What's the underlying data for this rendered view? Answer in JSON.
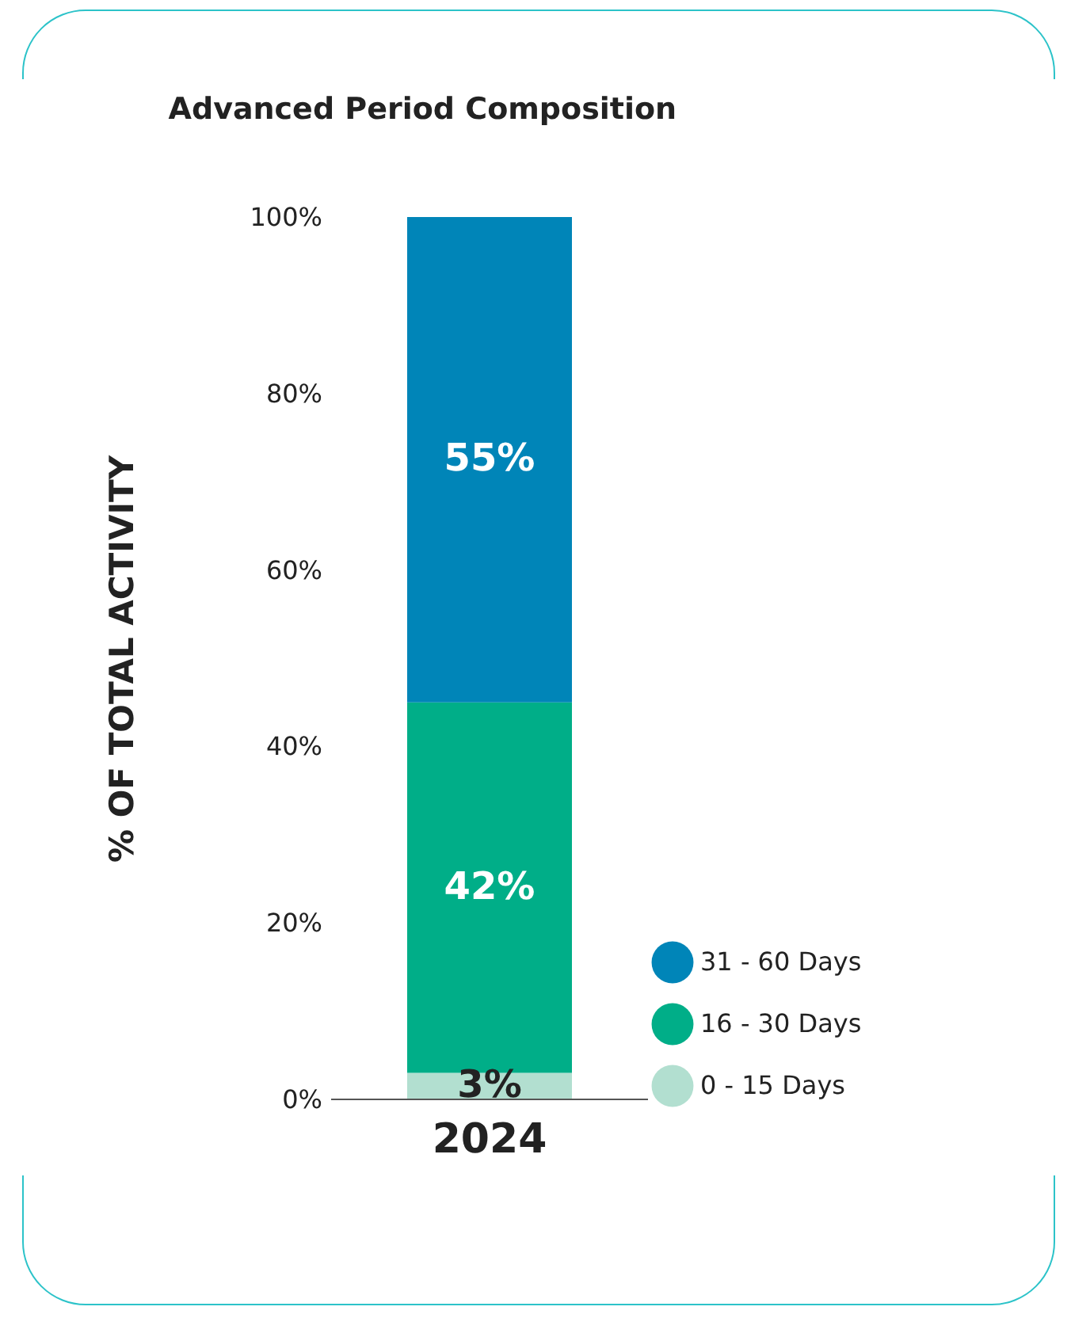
{
  "chart_data": {
    "type": "bar",
    "title": "Advanced Period Composition",
    "ylabel": "% OF TOTAL ACTIVITY",
    "categories": [
      "2024"
    ],
    "stacked": true,
    "series": [
      {
        "name": "0 - 15 Days",
        "color": "#b2dfd0",
        "values": [
          3
        ],
        "value_labels": [
          "3%"
        ]
      },
      {
        "name": "16 - 30 Days",
        "color": "#00ae88",
        "values": [
          42
        ],
        "value_labels": [
          "42%"
        ]
      },
      {
        "name": "31 - 60 Days",
        "color": "#0085b8",
        "values": [
          55
        ],
        "value_labels": [
          "55%"
        ]
      }
    ],
    "ylim": [
      0,
      100
    ],
    "yticks": [
      {
        "value": 0,
        "label": "0%"
      },
      {
        "value": 20,
        "label": "20%"
      },
      {
        "value": 40,
        "label": "40%"
      },
      {
        "value": 60,
        "label": "60%"
      },
      {
        "value": 80,
        "label": "80%"
      },
      {
        "value": 100,
        "label": "100%"
      }
    ],
    "grid": false,
    "legend": "bottom right"
  }
}
